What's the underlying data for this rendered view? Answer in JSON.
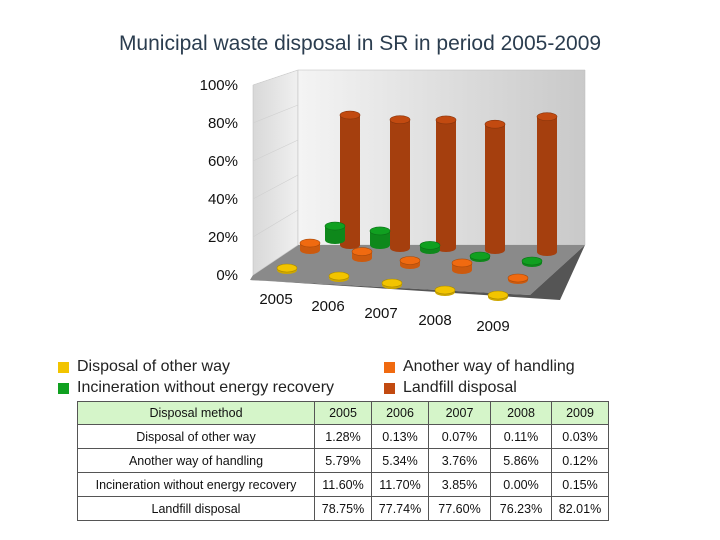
{
  "title": "Municipal waste disposal in SR in period 2005-2009",
  "legend": [
    {
      "label": "Disposal of other way",
      "color": "#f2c400"
    },
    {
      "label": "Another way of handling",
      "color": "#f06a10"
    },
    {
      "label": "Incineration without energy recovery",
      "color": "#10a020"
    },
    {
      "label": "Landfill disposal",
      "color": "#c24a10"
    }
  ],
  "table": {
    "header": [
      "Disposal method",
      "2005",
      "2006",
      "2007",
      "2008",
      "2009"
    ],
    "rows": [
      [
        "Disposal of other way",
        "1.28%",
        "0.13%",
        "0.07%",
        "0.11%",
        "0.03%"
      ],
      [
        "Another way of handling",
        "5.79%",
        "5.34%",
        "3.76%",
        "5.86%",
        "0.12%"
      ],
      [
        "Incineration without energy recovery",
        "11.60%",
        "11.70%",
        "3.85%",
        "0.00%",
        "0.15%"
      ],
      [
        "Landfill disposal",
        "78.75%",
        "77.74%",
        "77.60%",
        "76.23%",
        "82.01%"
      ]
    ]
  },
  "chart_data": {
    "type": "bar",
    "title": "Municipal waste disposal in SR in period 2005-2009",
    "categories": [
      "2005",
      "2006",
      "2007",
      "2008",
      "2009"
    ],
    "y_ticks": [
      "0%",
      "20%",
      "40%",
      "60%",
      "80%",
      "100%"
    ],
    "ylim": [
      0,
      100
    ],
    "series": [
      {
        "name": "Disposal of other way",
        "color": "#f2c400",
        "values": [
          1.28,
          0.13,
          0.07,
          0.11,
          0.03
        ]
      },
      {
        "name": "Another way of handling",
        "color": "#f06a10",
        "values": [
          5.79,
          5.34,
          3.76,
          5.86,
          0.12
        ]
      },
      {
        "name": "Incineration without energy recovery",
        "color": "#10a020",
        "values": [
          11.6,
          11.7,
          3.85,
          0.0,
          0.15
        ]
      },
      {
        "name": "Landfill disposal",
        "color": "#c24a10",
        "values": [
          78.75,
          77.74,
          77.6,
          76.23,
          82.01
        ]
      }
    ],
    "legend_position": "bottom"
  }
}
